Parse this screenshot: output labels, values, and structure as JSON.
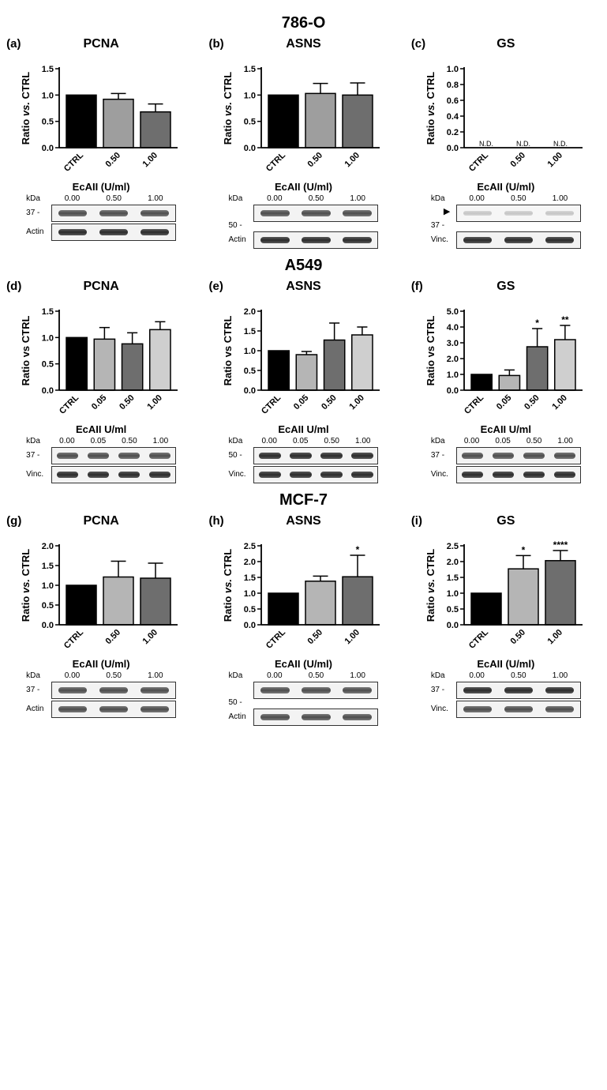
{
  "figure": {
    "sections": [
      {
        "title": "786-O",
        "panels": [
          {
            "letter": "(a)",
            "title": "PCNA",
            "chart": {
              "type": "bar",
              "ylabel": "Ratio vs. CTRL",
              "ylabel_italic_vs": true,
              "ylim": [
                0,
                1.5
              ],
              "ytick_step": 0.5,
              "categories": [
                "CTRL",
                "0.50",
                "1.00"
              ],
              "values": [
                1.0,
                0.92,
                0.68
              ],
              "errors": [
                0,
                0.11,
                0.15
              ],
              "bar_colors": [
                "#000000",
                "#9e9e9e",
                "#6e6e6e"
              ],
              "sig": [
                null,
                null,
                null
              ],
              "nd": [
                false,
                false,
                false
              ]
            },
            "blot": {
              "title": "EcAII (U/ml)",
              "columns": [
                "0.00",
                "0.50",
                "1.00"
              ],
              "marker_left": "37 -",
              "loading_label": "Actin",
              "target_band_style": "normal",
              "loading_band_style": "dark",
              "show_arrow": false
            }
          },
          {
            "letter": "(b)",
            "title": "ASNS",
            "chart": {
              "type": "bar",
              "ylabel": "Ratio vs. CTRL",
              "ylabel_italic_vs": true,
              "ylim": [
                0,
                1.5
              ],
              "ytick_step": 0.5,
              "categories": [
                "CTRL",
                "0.50",
                "1.00"
              ],
              "values": [
                1.0,
                1.03,
                1.0
              ],
              "errors": [
                0,
                0.19,
                0.23
              ],
              "bar_colors": [
                "#000000",
                "#9e9e9e",
                "#6e6e6e"
              ],
              "sig": [
                null,
                null,
                null
              ],
              "nd": [
                false,
                false,
                false
              ]
            },
            "blot": {
              "title": "EcAII (U/ml)",
              "columns": [
                "0.00",
                "0.50",
                "1.00"
              ],
              "marker_left": "50 -",
              "marker_pos": "below",
              "loading_label": "Actin",
              "target_band_style": "normal",
              "loading_band_style": "dark",
              "show_arrow": false
            }
          },
          {
            "letter": "(c)",
            "title": "GS",
            "chart": {
              "type": "bar",
              "ylabel": "Ratio vs. CTRL",
              "ylabel_italic_vs": true,
              "ylim": [
                0,
                1.0
              ],
              "ytick_step": 0.2,
              "categories": [
                "CTRL",
                "0.50",
                "1.00"
              ],
              "values": [
                0,
                0,
                0
              ],
              "errors": [
                0,
                0,
                0
              ],
              "bar_colors": [
                "#000000",
                "#9e9e9e",
                "#6e6e6e"
              ],
              "sig": [
                null,
                null,
                null
              ],
              "nd": [
                true,
                true,
                true
              ]
            },
            "blot": {
              "title": "EcAII (U/ml)",
              "columns": [
                "0.00",
                "0.50",
                "1.00"
              ],
              "marker_left": "37 -",
              "marker_pos": "below",
              "loading_label": "Vinc.",
              "target_band_style": "faint",
              "loading_band_style": "dark",
              "show_arrow": true
            }
          }
        ]
      },
      {
        "title": "A549",
        "panels": [
          {
            "letter": "(d)",
            "title": "PCNA",
            "chart": {
              "type": "bar",
              "ylabel": "Ratio vs CTRL",
              "ylabel_italic_vs": false,
              "ylim": [
                0,
                1.5
              ],
              "ytick_step": 0.5,
              "categories": [
                "CTRL",
                "0.05",
                "0.50",
                "1.00"
              ],
              "values": [
                1.0,
                0.97,
                0.88,
                1.15
              ],
              "errors": [
                0,
                0.22,
                0.21,
                0.15
              ],
              "bar_colors": [
                "#000000",
                "#b5b5b5",
                "#6e6e6e",
                "#cfcfcf"
              ],
              "sig": [
                null,
                null,
                null,
                null
              ],
              "nd": [
                false,
                false,
                false,
                false
              ]
            },
            "blot": {
              "title": "EcAII U/ml",
              "columns": [
                "0.00",
                "0.05",
                "0.50",
                "1.00"
              ],
              "marker_left": "37 -",
              "loading_label": "Vinc.",
              "target_band_style": "normal",
              "loading_band_style": "dark",
              "show_arrow": false
            }
          },
          {
            "letter": "(e)",
            "title": "ASNS",
            "chart": {
              "type": "bar",
              "ylabel": "Ratio vs CTRL",
              "ylabel_italic_vs": false,
              "ylim": [
                0,
                2.0
              ],
              "ytick_step": 0.5,
              "categories": [
                "CTRL",
                "0.05",
                "0.50",
                "1.00"
              ],
              "values": [
                1.0,
                0.9,
                1.27,
                1.4
              ],
              "errors": [
                0,
                0.08,
                0.43,
                0.2
              ],
              "bar_colors": [
                "#000000",
                "#b5b5b5",
                "#6e6e6e",
                "#cfcfcf"
              ],
              "sig": [
                null,
                null,
                null,
                null
              ],
              "nd": [
                false,
                false,
                false,
                false
              ]
            },
            "blot": {
              "title": "EcAII U/ml",
              "columns": [
                "0.00",
                "0.05",
                "0.50",
                "1.00"
              ],
              "marker_left": "50 -",
              "loading_label": "Vinc.",
              "target_band_style": "dark",
              "loading_band_style": "dark",
              "show_arrow": false
            }
          },
          {
            "letter": "(f)",
            "title": "GS",
            "chart": {
              "type": "bar",
              "ylabel": "Ratio vs CTRL",
              "ylabel_italic_vs": false,
              "ylim": [
                0,
                5.0
              ],
              "ytick_step": 1.0,
              "categories": [
                "CTRL",
                "0.05",
                "0.50",
                "1.00"
              ],
              "values": [
                1.0,
                0.93,
                2.75,
                3.2
              ],
              "errors": [
                0,
                0.35,
                1.15,
                0.9
              ],
              "bar_colors": [
                "#000000",
                "#b5b5b5",
                "#6e6e6e",
                "#cfcfcf"
              ],
              "sig": [
                null,
                null,
                "*",
                "**"
              ],
              "nd": [
                false,
                false,
                false,
                false
              ]
            },
            "blot": {
              "title": "EcAII U/ml",
              "columns": [
                "0.00",
                "0.05",
                "0.50",
                "1.00"
              ],
              "marker_left": "37 -",
              "loading_label": "Vinc.",
              "target_band_style": "normal",
              "loading_band_style": "dark",
              "show_arrow": false
            }
          }
        ]
      },
      {
        "title": "MCF-7",
        "panels": [
          {
            "letter": "(g)",
            "title": "PCNA",
            "chart": {
              "type": "bar",
              "ylabel": "Ratio vs. CTRL",
              "ylabel_italic_vs": true,
              "ylim": [
                0,
                2.0
              ],
              "ytick_step": 0.5,
              "categories": [
                "CTRL",
                "0.50",
                "1.00"
              ],
              "values": [
                1.0,
                1.21,
                1.18
              ],
              "errors": [
                0,
                0.4,
                0.38
              ],
              "bar_colors": [
                "#000000",
                "#b5b5b5",
                "#6e6e6e"
              ],
              "sig": [
                null,
                null,
                null
              ],
              "nd": [
                false,
                false,
                false
              ]
            },
            "blot": {
              "title": "EcAII (U/ml)",
              "columns": [
                "0.00",
                "0.50",
                "1.00"
              ],
              "marker_left": "37 -",
              "loading_label": "Actin",
              "target_band_style": "normal",
              "loading_band_style": "normal",
              "show_arrow": false
            }
          },
          {
            "letter": "(h)",
            "title": "ASNS",
            "chart": {
              "type": "bar",
              "ylabel": "Ratio vs. CTRL",
              "ylabel_italic_vs": true,
              "ylim": [
                0,
                2.5
              ],
              "ytick_step": 0.5,
              "categories": [
                "CTRL",
                "0.50",
                "1.00"
              ],
              "values": [
                1.0,
                1.38,
                1.52
              ],
              "errors": [
                0,
                0.16,
                0.68
              ],
              "bar_colors": [
                "#000000",
                "#b5b5b5",
                "#6e6e6e"
              ],
              "sig": [
                null,
                null,
                "*"
              ],
              "nd": [
                false,
                false,
                false
              ]
            },
            "blot": {
              "title": "EcAII (U/ml)",
              "columns": [
                "0.00",
                "0.50",
                "1.00"
              ],
              "marker_left": "50 -",
              "marker_pos": "below",
              "loading_label": "Actin",
              "target_band_style": "normal",
              "loading_band_style": "normal",
              "show_arrow": false
            }
          },
          {
            "letter": "(i)",
            "title": "GS",
            "chart": {
              "type": "bar",
              "ylabel": "Ratio vs. CTRL",
              "ylabel_italic_vs": true,
              "ylim": [
                0,
                2.5
              ],
              "ytick_step": 0.5,
              "categories": [
                "CTRL",
                "0.50",
                "1.00"
              ],
              "values": [
                1.0,
                1.77,
                2.03
              ],
              "errors": [
                0,
                0.42,
                0.32
              ],
              "bar_colors": [
                "#000000",
                "#b5b5b5",
                "#6e6e6e"
              ],
              "sig": [
                null,
                "*",
                "****"
              ],
              "nd": [
                false,
                false,
                false
              ]
            },
            "blot": {
              "title": "EcAII (U/ml)",
              "columns": [
                "0.00",
                "0.50",
                "1.00"
              ],
              "marker_left": "37 -",
              "loading_label": "Vinc.",
              "target_band_style": "dark",
              "loading_band_style": "normal",
              "show_arrow": false
            }
          }
        ]
      }
    ]
  },
  "style": {
    "axis_color": "#000000",
    "axis_width": 1.8,
    "bar_border": "#000000",
    "fonts": {
      "title": 20,
      "panel_title": 16,
      "axis_label": 13,
      "tick": 11,
      "blot": 10
    }
  }
}
